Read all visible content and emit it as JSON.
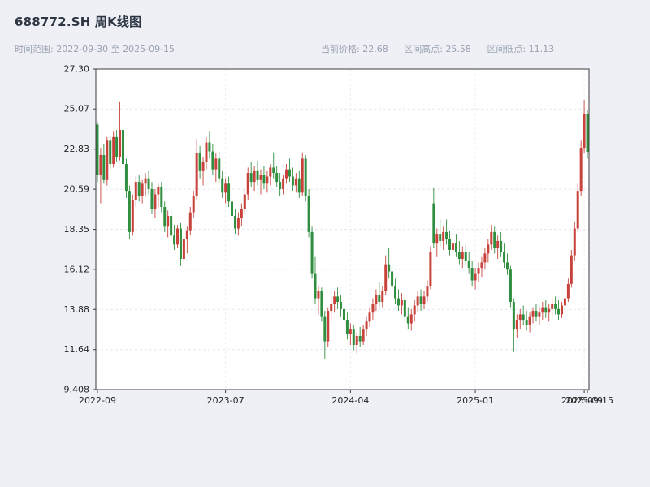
{
  "header": {
    "title": "688772.SH 周K线图",
    "subtitle_left": "时间范围: 2022-09-30 至 2025-09-15",
    "stats": [
      {
        "label": "当前价格:",
        "value": "22.68"
      },
      {
        "label": "区间高点:",
        "value": "25.58"
      },
      {
        "label": "区间低点:",
        "value": "11.13"
      }
    ]
  },
  "chart_data": {
    "type": "candlestick",
    "title": "688772.SH 周K线图",
    "symbol": "688772.SH",
    "frequency": "weekly",
    "date_range": {
      "start": "2022-09-30",
      "end": "2025-09-15"
    },
    "current_price": 22.68,
    "range_high": 25.58,
    "range_low": 11.13,
    "legend": "none",
    "grid": "faint-dashed",
    "y_axis": {
      "min": 9.408,
      "max": 27.3,
      "tick_labels": [
        "27.30",
        "25.07",
        "22.83",
        "20.59",
        "18.35",
        "16.12",
        "13.88",
        "11.64",
        "9.408"
      ]
    },
    "x_ticks": [
      {
        "i": 0,
        "label": "2022-09"
      },
      {
        "i": 40,
        "label": "2023-07"
      },
      {
        "i": 79,
        "label": "2024-04"
      },
      {
        "i": 118,
        "label": "2025-01"
      },
      {
        "i": 152,
        "label": "2025-09"
      },
      {
        "i": 153,
        "label": "2025-09-15"
      }
    ],
    "colors": {
      "up": "#c8423c",
      "down": "#2f8e3f",
      "plot_bg": "#ffffff",
      "page_bg": "#eef0f6",
      "spine": "#3c3c3c"
    },
    "ohlc_columns": [
      "open",
      "high",
      "low",
      "close"
    ],
    "ohlc": [
      [
        24.2,
        24.35,
        21.0,
        21.4
      ],
      [
        21.4,
        22.9,
        19.8,
        22.5
      ],
      [
        22.5,
        23.1,
        20.9,
        21.1
      ],
      [
        21.1,
        23.5,
        20.8,
        23.3
      ],
      [
        23.3,
        23.6,
        21.7,
        22.0
      ],
      [
        22.0,
        23.8,
        21.8,
        23.5
      ],
      [
        23.5,
        23.9,
        22.1,
        22.4
      ],
      [
        22.4,
        25.45,
        22.2,
        23.9
      ],
      [
        23.9,
        24.1,
        21.6,
        22.0
      ],
      [
        22.0,
        22.3,
        20.1,
        20.5
      ],
      [
        20.5,
        20.8,
        17.8,
        18.2
      ],
      [
        18.2,
        20.3,
        18.0,
        20.0
      ],
      [
        20.0,
        21.3,
        19.6,
        21.0
      ],
      [
        21.0,
        21.4,
        19.9,
        20.2
      ],
      [
        20.2,
        21.1,
        19.8,
        20.9
      ],
      [
        20.9,
        21.5,
        20.2,
        21.2
      ],
      [
        21.2,
        21.6,
        20.3,
        20.6
      ],
      [
        20.6,
        21.0,
        19.2,
        19.5
      ],
      [
        19.5,
        20.6,
        19.0,
        20.3
      ],
      [
        20.3,
        20.9,
        19.6,
        20.7
      ],
      [
        20.7,
        21.0,
        19.3,
        19.6
      ],
      [
        19.6,
        19.9,
        18.2,
        18.5
      ],
      [
        18.5,
        19.4,
        17.9,
        19.1
      ],
      [
        19.1,
        19.5,
        17.8,
        18.0
      ],
      [
        18.0,
        18.6,
        17.2,
        17.5
      ],
      [
        17.5,
        18.6,
        17.3,
        18.4
      ],
      [
        18.4,
        18.7,
        16.3,
        16.7
      ],
      [
        16.7,
        18.0,
        16.5,
        17.8
      ],
      [
        17.8,
        18.5,
        17.0,
        18.3
      ],
      [
        18.3,
        19.6,
        18.0,
        19.3
      ],
      [
        19.3,
        20.5,
        19.0,
        20.2
      ],
      [
        20.2,
        23.4,
        20.0,
        22.6
      ],
      [
        22.6,
        23.0,
        21.2,
        21.6
      ],
      [
        21.6,
        22.4,
        20.8,
        22.1
      ],
      [
        22.1,
        23.5,
        21.7,
        23.2
      ],
      [
        23.2,
        23.8,
        22.3,
        22.7
      ],
      [
        22.7,
        23.1,
        21.4,
        21.7
      ],
      [
        21.7,
        22.6,
        21.0,
        22.3
      ],
      [
        22.3,
        22.7,
        20.9,
        21.2
      ],
      [
        21.2,
        21.6,
        20.1,
        20.4
      ],
      [
        20.4,
        21.2,
        19.8,
        20.9
      ],
      [
        20.9,
        21.3,
        19.6,
        19.9
      ],
      [
        19.9,
        20.4,
        18.8,
        19.1
      ],
      [
        19.1,
        19.5,
        18.1,
        18.4
      ],
      [
        18.4,
        19.3,
        18.0,
        19.0
      ],
      [
        19.0,
        19.8,
        18.5,
        19.5
      ],
      [
        19.5,
        20.6,
        19.2,
        20.3
      ],
      [
        20.3,
        21.8,
        20.0,
        21.5
      ],
      [
        21.5,
        22.1,
        20.7,
        21.0
      ],
      [
        21.0,
        21.9,
        20.5,
        21.6
      ],
      [
        21.6,
        22.2,
        20.8,
        21.1
      ],
      [
        21.1,
        21.7,
        20.3,
        21.4
      ],
      [
        21.4,
        21.9,
        20.6,
        20.9
      ],
      [
        20.9,
        21.6,
        20.4,
        21.3
      ],
      [
        21.3,
        22.0,
        20.8,
        21.8
      ],
      [
        21.8,
        22.65,
        21.2,
        21.5
      ],
      [
        21.5,
        21.9,
        20.7,
        21.0
      ],
      [
        21.0,
        21.5,
        20.2,
        20.6
      ],
      [
        20.6,
        21.4,
        20.3,
        21.2
      ],
      [
        21.2,
        22.0,
        20.9,
        21.7
      ],
      [
        21.7,
        22.3,
        21.0,
        21.3
      ],
      [
        21.3,
        21.8,
        20.5,
        20.8
      ],
      [
        20.8,
        21.5,
        20.4,
        21.2
      ],
      [
        21.2,
        21.6,
        20.1,
        20.4
      ],
      [
        20.4,
        22.65,
        20.2,
        22.3
      ],
      [
        22.3,
        22.5,
        19.9,
        20.2
      ],
      [
        20.2,
        20.6,
        17.9,
        18.2
      ],
      [
        18.2,
        18.5,
        15.6,
        15.9
      ],
      [
        15.9,
        16.8,
        14.2,
        14.5
      ],
      [
        14.5,
        15.2,
        13.6,
        14.9
      ],
      [
        14.9,
        15.1,
        13.2,
        13.5
      ],
      [
        13.5,
        13.8,
        11.13,
        12.1
      ],
      [
        12.1,
        14.0,
        11.8,
        13.8
      ],
      [
        13.8,
        14.6,
        13.2,
        14.2
      ],
      [
        14.2,
        14.9,
        13.7,
        14.6
      ],
      [
        14.6,
        15.1,
        13.9,
        14.3
      ],
      [
        14.3,
        14.7,
        13.5,
        13.9
      ],
      [
        13.9,
        14.4,
        13.0,
        13.3
      ],
      [
        13.3,
        13.7,
        12.2,
        12.5
      ],
      [
        12.5,
        13.1,
        11.9,
        12.8
      ],
      [
        12.8,
        13.0,
        11.6,
        11.9
      ],
      [
        11.9,
        12.6,
        11.4,
        12.4
      ],
      [
        12.4,
        12.9,
        11.8,
        12.1
      ],
      [
        12.1,
        13.0,
        11.9,
        12.8
      ],
      [
        12.8,
        13.5,
        12.4,
        13.2
      ],
      [
        13.2,
        14.0,
        12.9,
        13.7
      ],
      [
        13.7,
        14.5,
        13.3,
        14.2
      ],
      [
        14.2,
        15.0,
        13.8,
        14.7
      ],
      [
        14.7,
        15.4,
        14.0,
        14.3
      ],
      [
        14.3,
        15.2,
        14.0,
        14.9
      ],
      [
        14.9,
        16.9,
        14.7,
        16.4
      ],
      [
        16.4,
        17.3,
        15.6,
        16.0
      ],
      [
        16.0,
        16.5,
        14.9,
        15.2
      ],
      [
        15.2,
        15.6,
        14.2,
        14.5
      ],
      [
        14.5,
        15.0,
        13.8,
        14.1
      ],
      [
        14.1,
        14.8,
        13.6,
        14.4
      ],
      [
        14.4,
        14.7,
        13.2,
        13.5
      ],
      [
        13.5,
        14.0,
        12.8,
        13.1
      ],
      [
        13.1,
        13.9,
        12.7,
        13.6
      ],
      [
        13.6,
        14.4,
        13.2,
        14.1
      ],
      [
        14.1,
        14.9,
        13.7,
        14.6
      ],
      [
        14.6,
        15.0,
        13.8,
        14.2
      ],
      [
        14.2,
        14.9,
        13.9,
        14.6
      ],
      [
        14.6,
        15.5,
        14.3,
        15.2
      ],
      [
        15.2,
        17.4,
        15.0,
        17.1
      ],
      [
        19.8,
        20.65,
        17.3,
        17.6
      ],
      [
        17.6,
        18.4,
        16.8,
        18.1
      ],
      [
        18.1,
        18.9,
        17.4,
        17.7
      ],
      [
        17.7,
        18.5,
        17.2,
        18.2
      ],
      [
        18.2,
        18.9,
        17.5,
        17.8
      ],
      [
        17.8,
        18.3,
        16.9,
        17.2
      ],
      [
        17.2,
        17.9,
        16.6,
        17.6
      ],
      [
        17.6,
        18.1,
        16.8,
        17.1
      ],
      [
        17.1,
        17.7,
        16.4,
        16.7
      ],
      [
        16.7,
        17.4,
        16.2,
        17.1
      ],
      [
        17.1,
        17.5,
        16.3,
        16.6
      ],
      [
        16.6,
        17.1,
        15.9,
        16.2
      ],
      [
        16.2,
        16.6,
        15.2,
        15.5
      ],
      [
        15.5,
        16.2,
        15.0,
        15.9
      ],
      [
        15.9,
        16.5,
        15.4,
        16.2
      ],
      [
        16.2,
        16.8,
        15.7,
        16.5
      ],
      [
        16.5,
        17.3,
        16.1,
        17.0
      ],
      [
        17.0,
        17.8,
        16.5,
        17.5
      ],
      [
        17.5,
        18.6,
        17.2,
        18.2
      ],
      [
        18.2,
        18.5,
        17.0,
        17.3
      ],
      [
        17.3,
        18.0,
        16.7,
        17.7
      ],
      [
        17.7,
        18.2,
        16.8,
        17.1
      ],
      [
        17.1,
        17.6,
        16.2,
        16.5
      ],
      [
        16.5,
        17.0,
        15.8,
        16.1
      ],
      [
        16.1,
        16.3,
        14.0,
        14.3
      ],
      [
        14.3,
        14.5,
        11.5,
        12.8
      ],
      [
        12.8,
        13.6,
        12.3,
        13.3
      ],
      [
        13.3,
        13.9,
        12.8,
        13.6
      ],
      [
        13.6,
        14.1,
        13.0,
        13.3
      ],
      [
        13.3,
        13.8,
        12.7,
        13.0
      ],
      [
        13.0,
        13.7,
        12.6,
        13.5
      ],
      [
        13.5,
        14.0,
        13.1,
        13.8
      ],
      [
        13.8,
        14.2,
        13.2,
        13.5
      ],
      [
        13.5,
        14.0,
        13.0,
        13.7
      ],
      [
        13.7,
        14.3,
        13.3,
        14.0
      ],
      [
        14.0,
        14.4,
        13.4,
        13.7
      ],
      [
        13.7,
        14.2,
        13.2,
        13.9
      ],
      [
        13.9,
        14.5,
        13.5,
        14.2
      ],
      [
        14.2,
        14.6,
        13.6,
        13.9
      ],
      [
        13.9,
        14.4,
        13.3,
        13.6
      ],
      [
        13.6,
        14.3,
        13.4,
        14.1
      ],
      [
        14.1,
        14.8,
        13.8,
        14.5
      ],
      [
        14.5,
        15.6,
        14.3,
        15.3
      ],
      [
        15.3,
        17.2,
        15.1,
        16.9
      ],
      [
        16.9,
        18.8,
        16.6,
        18.4
      ],
      [
        18.4,
        20.9,
        18.2,
        20.5
      ],
      [
        20.5,
        23.3,
        20.2,
        22.9
      ],
      [
        22.9,
        25.58,
        22.6,
        24.8
      ],
      [
        24.8,
        25.0,
        22.3,
        22.68
      ]
    ]
  }
}
